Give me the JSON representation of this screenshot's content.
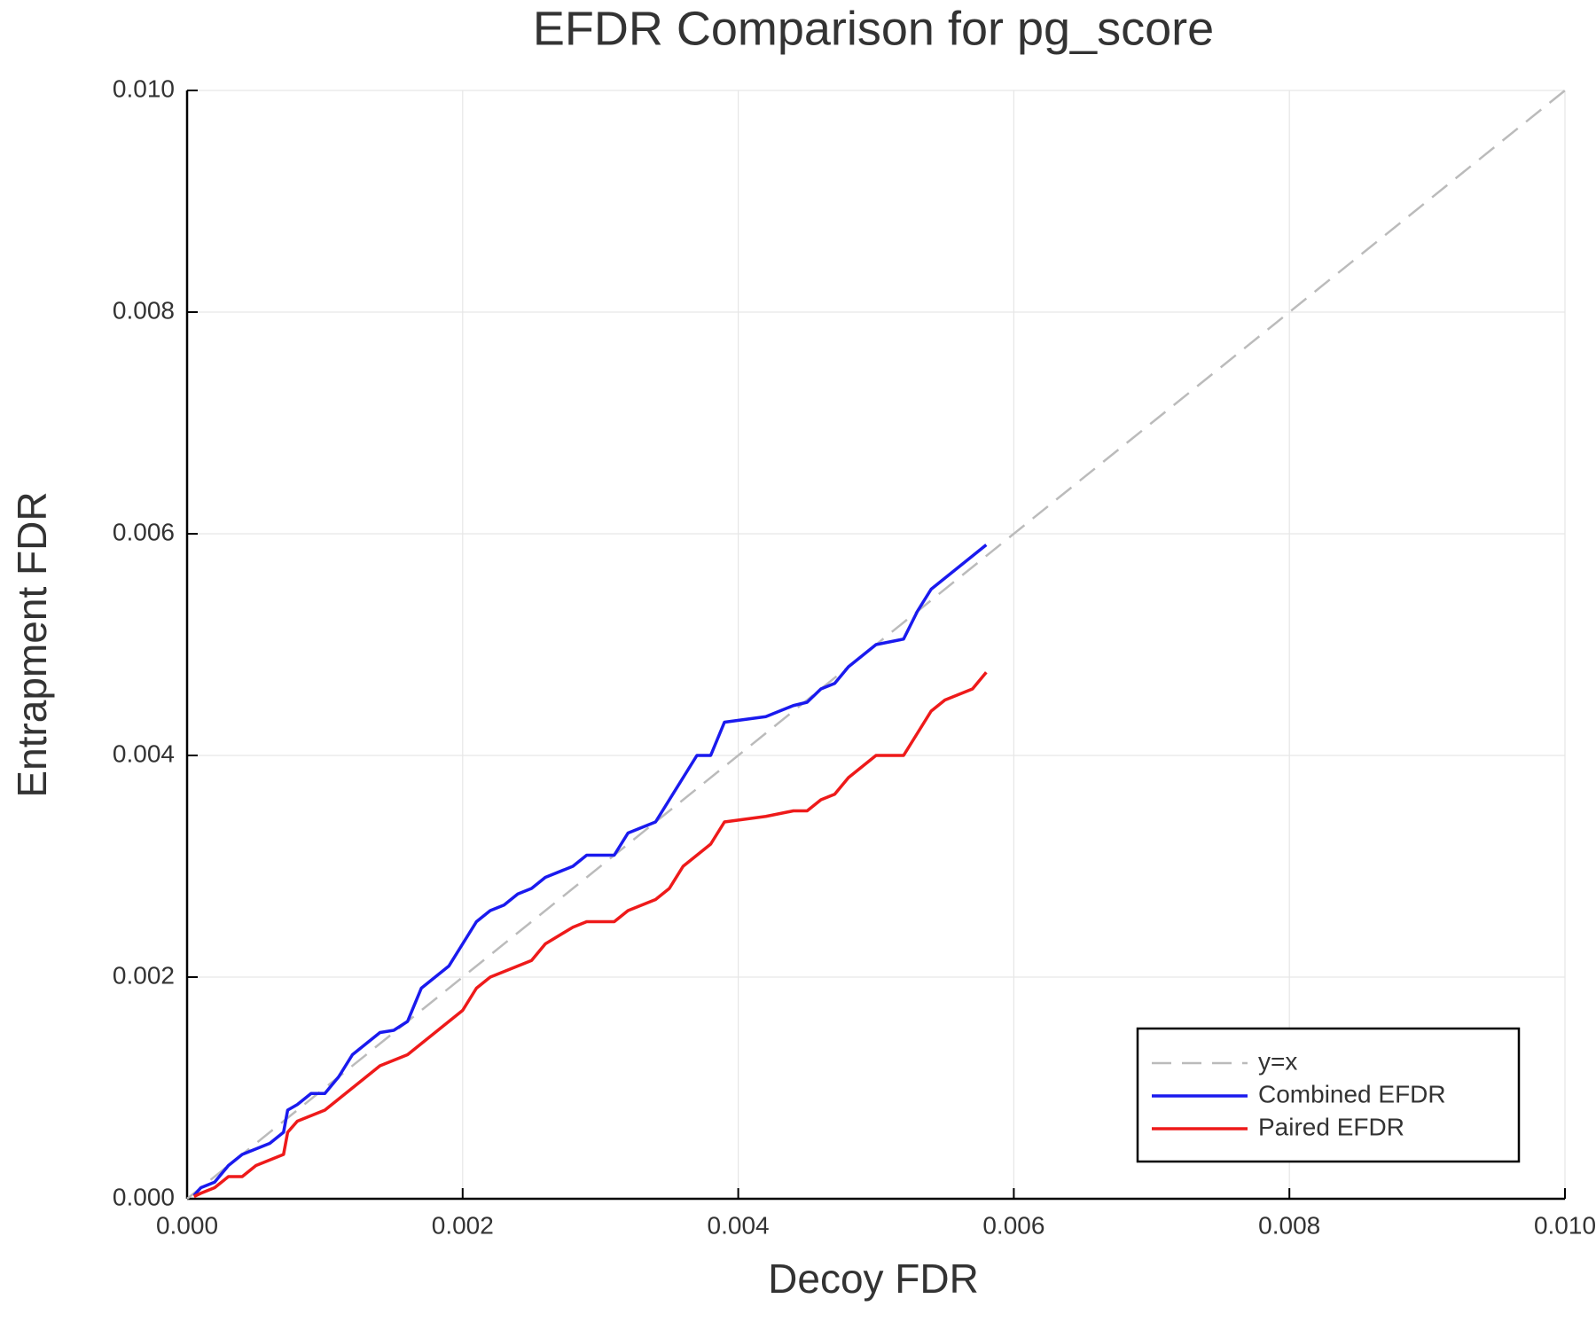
{
  "chart_data": {
    "type": "line",
    "title": "EFDR Comparison for pg_score",
    "x_label": "Decoy FDR",
    "y_label": "Entrapment FDR",
    "xlim": [
      0,
      0.01
    ],
    "ylim": [
      0,
      0.01
    ],
    "xticks": [
      {
        "value": 0,
        "label": "0.000"
      },
      {
        "value": 0.002,
        "label": "0.002"
      },
      {
        "value": 0.004,
        "label": "0.004"
      },
      {
        "value": 0.006,
        "label": "0.006"
      },
      {
        "value": 0.008,
        "label": "0.008"
      },
      {
        "value": 0.01,
        "label": "0.010"
      }
    ],
    "yticks": [
      {
        "value": 0,
        "label": "0.000"
      },
      {
        "value": 0.002,
        "label": "0.002"
      },
      {
        "value": 0.004,
        "label": "0.004"
      },
      {
        "value": 0.006,
        "label": "0.006"
      },
      {
        "value": 0.008,
        "label": "0.008"
      },
      {
        "value": 0.01,
        "label": "0.010"
      }
    ],
    "grid": true,
    "legend": "lower right",
    "x": [
      5e-05,
      0.0001,
      0.0002,
      0.0003,
      0.0004,
      0.0005,
      0.0006,
      0.0007,
      0.00073,
      0.0008,
      0.0009,
      0.001,
      0.0011,
      0.0012,
      0.0013,
      0.0014,
      0.0015,
      0.0016,
      0.0017,
      0.0018,
      0.0019,
      0.002,
      0.0021,
      0.0022,
      0.0023,
      0.0024,
      0.0025,
      0.0026,
      0.0028,
      0.0029,
      0.0031,
      0.0032,
      0.0034,
      0.0035,
      0.0036,
      0.0037,
      0.0038,
      0.0039,
      0.0042,
      0.0044,
      0.0045,
      0.0046,
      0.0047,
      0.0048,
      0.0049,
      0.005,
      0.0052,
      0.0053,
      0.0054,
      0.0055,
      0.0056,
      0.0057,
      0.0058
    ],
    "series": [
      {
        "name": "y=x",
        "color": "#bbbbbb",
        "style": "dashed",
        "x": [
          0,
          0.01
        ],
        "values": [
          0,
          0.01
        ]
      },
      {
        "name": "Combined EFDR",
        "color": "#1a1aee",
        "style": "solid",
        "values": [
          3e-05,
          0.0001,
          0.00015,
          0.0003,
          0.0004,
          0.00045,
          0.0005,
          0.0006,
          0.0008,
          0.00085,
          0.00095,
          0.00095,
          0.0011,
          0.0013,
          0.0014,
          0.0015,
          0.00152,
          0.0016,
          0.0019,
          0.002,
          0.0021,
          0.0023,
          0.0025,
          0.0026,
          0.00265,
          0.00275,
          0.0028,
          0.0029,
          0.003,
          0.0031,
          0.0031,
          0.0033,
          0.0034,
          0.0036,
          0.0038,
          0.004,
          0.004,
          0.0043,
          0.00435,
          0.00445,
          0.00448,
          0.0046,
          0.00465,
          0.0048,
          0.0049,
          0.005,
          0.00505,
          0.0053,
          0.0055,
          0.0056,
          0.0057,
          0.0058,
          0.0059
        ]
      },
      {
        "name": "Paired EFDR",
        "color": "#ee1a1a",
        "style": "solid",
        "values": [
          2e-05,
          5e-05,
          0.0001,
          0.0002,
          0.0002,
          0.0003,
          0.00035,
          0.0004,
          0.0006,
          0.0007,
          0.00075,
          0.0008,
          0.0009,
          0.001,
          0.0011,
          0.0012,
          0.00125,
          0.0013,
          0.0014,
          0.0015,
          0.0016,
          0.0017,
          0.0019,
          0.002,
          0.00205,
          0.0021,
          0.00215,
          0.0023,
          0.00245,
          0.0025,
          0.0025,
          0.0026,
          0.0027,
          0.0028,
          0.003,
          0.0031,
          0.0032,
          0.0034,
          0.00345,
          0.0035,
          0.0035,
          0.0036,
          0.00365,
          0.0038,
          0.0039,
          0.004,
          0.004,
          0.0042,
          0.0044,
          0.0045,
          0.00455,
          0.0046,
          0.00475
        ]
      }
    ]
  }
}
